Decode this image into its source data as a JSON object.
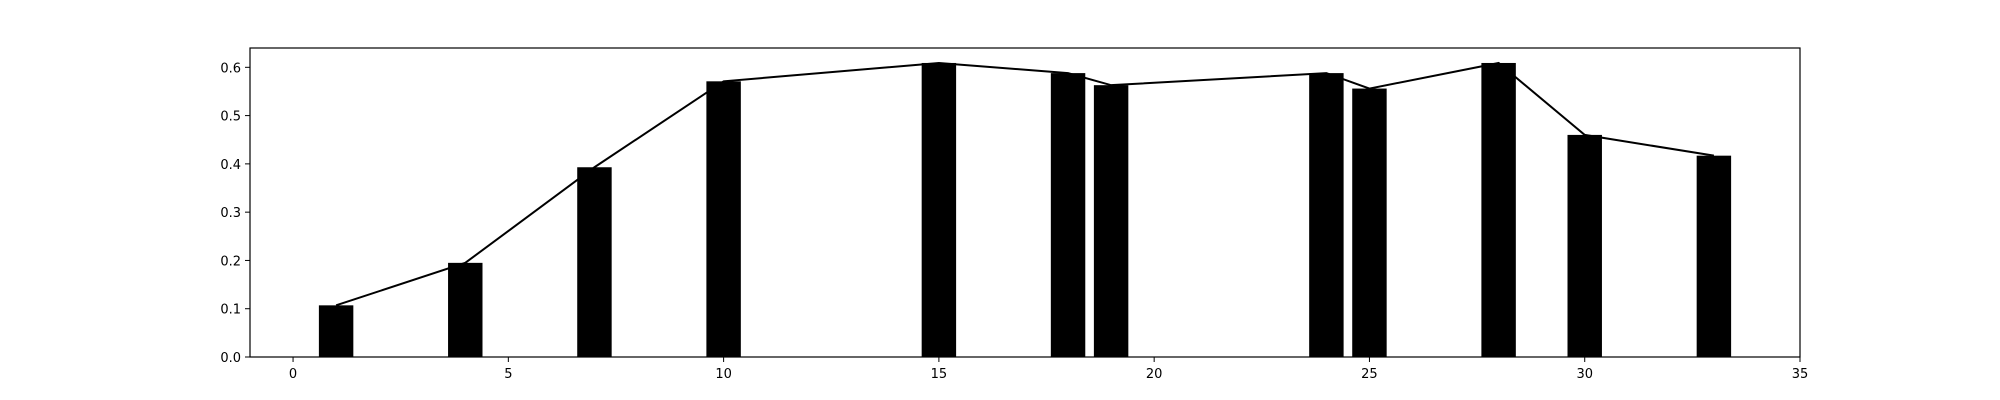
{
  "chart_data": {
    "type": "bar",
    "title": "",
    "xlabel": "",
    "ylabel": "",
    "xlim": [
      -1,
      35
    ],
    "ylim": [
      0,
      0.64
    ],
    "grid": false,
    "x_ticks": [
      0,
      5,
      10,
      15,
      20,
      25,
      30,
      35
    ],
    "y_ticks": [
      0.0,
      0.1,
      0.2,
      0.3,
      0.4,
      0.5,
      0.6
    ],
    "x_tick_labels": [
      "0",
      "5",
      "10",
      "15",
      "20",
      "25",
      "30",
      "35"
    ],
    "y_tick_labels": [
      "0.0",
      "0.1",
      "0.2",
      "0.3",
      "0.4",
      "0.5",
      "0.6"
    ],
    "bar_width": 0.8,
    "bar_color": "#000000",
    "line_color": "#000000",
    "series": [
      {
        "type": "bar",
        "x": [
          1,
          4,
          7,
          10,
          15,
          18,
          19,
          24,
          25,
          28,
          30,
          33
        ],
        "values": [
          0.107,
          0.195,
          0.393,
          0.571,
          0.609,
          0.588,
          0.563,
          0.588,
          0.556,
          0.609,
          0.46,
          0.417
        ]
      },
      {
        "type": "line",
        "x": [
          1,
          4,
          7,
          10,
          15,
          18,
          19,
          24,
          25,
          28,
          30,
          33
        ],
        "values": [
          0.107,
          0.195,
          0.393,
          0.571,
          0.609,
          0.588,
          0.563,
          0.588,
          0.556,
          0.609,
          0.46,
          0.417
        ]
      }
    ]
  }
}
